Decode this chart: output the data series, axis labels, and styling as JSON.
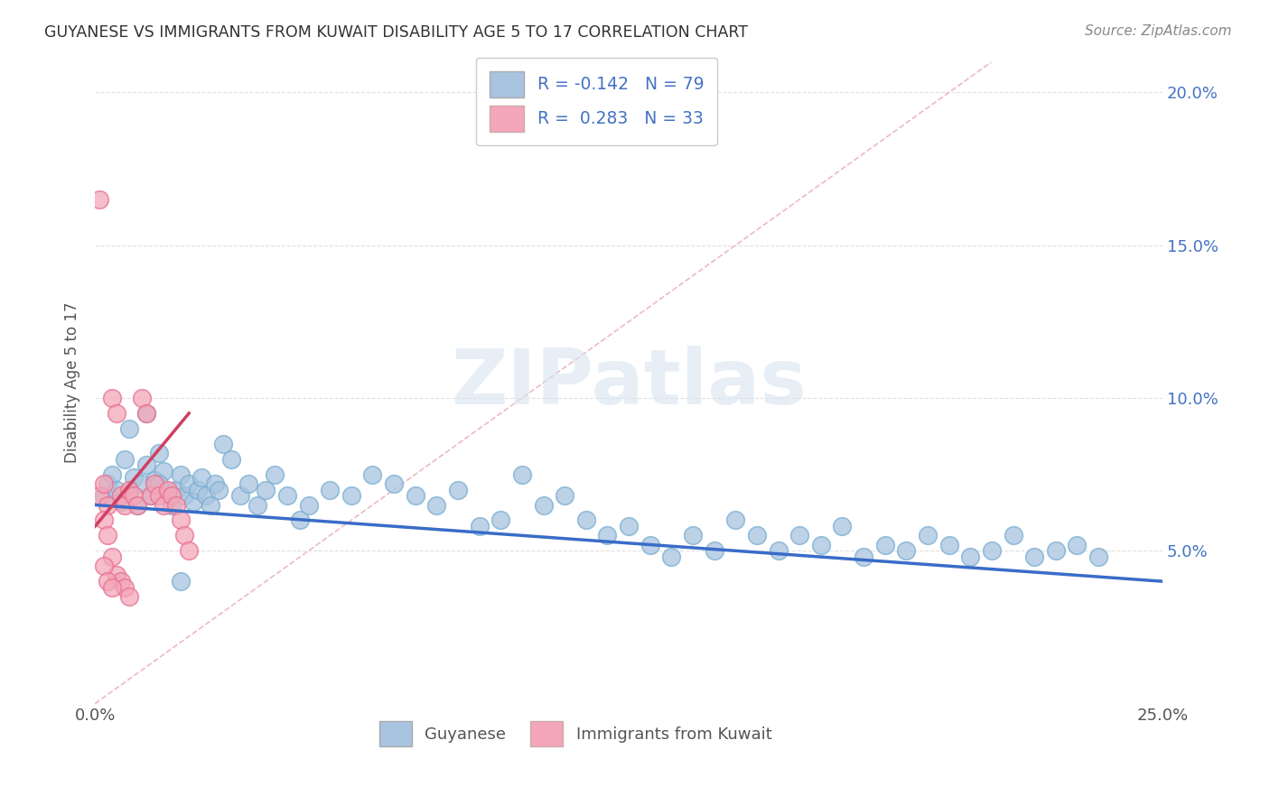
{
  "title": "GUYANESE VS IMMIGRANTS FROM KUWAIT DISABILITY AGE 5 TO 17 CORRELATION CHART",
  "source": "Source: ZipAtlas.com",
  "ylabel": "Disability Age 5 to 17",
  "xlim": [
    0.0,
    0.25
  ],
  "ylim": [
    0.0,
    0.21
  ],
  "x_tick_vals": [
    0.0,
    0.05,
    0.1,
    0.15,
    0.2,
    0.25
  ],
  "x_tick_labels": [
    "0.0%",
    "",
    "",
    "",
    "",
    "25.0%"
  ],
  "y_tick_vals": [
    0.05,
    0.1,
    0.15,
    0.2
  ],
  "y_tick_labels_right": [
    "5.0%",
    "10.0%",
    "15.0%",
    "20.0%"
  ],
  "legend1_label": "R = -0.142   N = 79",
  "legend2_label": "R =  0.283   N = 33",
  "legend_label1_bottom": "Guyanese",
  "legend_label2_bottom": "Immigrants from Kuwait",
  "blue_color": "#a8c4e0",
  "blue_edge_color": "#7aaed0",
  "pink_color": "#f4a7b9",
  "pink_edge_color": "#e87090",
  "line_blue": "#3a6cc8",
  "line_pink": "#d04060",
  "diag_color": "#e8a8b8",
  "watermark_color": "#d8e4f0",
  "watermark": "ZIPatlas",
  "background_color": "#ffffff",
  "grid_color": "#e0e0e0",
  "blue_scatter_x": [
    0.002,
    0.003,
    0.004,
    0.005,
    0.006,
    0.007,
    0.008,
    0.009,
    0.01,
    0.011,
    0.012,
    0.013,
    0.014,
    0.015,
    0.016,
    0.017,
    0.018,
    0.019,
    0.02,
    0.021,
    0.022,
    0.023,
    0.024,
    0.025,
    0.026,
    0.027,
    0.028,
    0.029,
    0.03,
    0.032,
    0.034,
    0.036,
    0.038,
    0.04,
    0.042,
    0.045,
    0.048,
    0.05,
    0.055,
    0.06,
    0.065,
    0.07,
    0.075,
    0.08,
    0.085,
    0.09,
    0.095,
    0.1,
    0.105,
    0.11,
    0.115,
    0.12,
    0.125,
    0.13,
    0.135,
    0.14,
    0.145,
    0.15,
    0.155,
    0.16,
    0.165,
    0.17,
    0.175,
    0.18,
    0.185,
    0.19,
    0.195,
    0.2,
    0.205,
    0.21,
    0.215,
    0.22,
    0.225,
    0.23,
    0.235,
    0.008,
    0.012,
    0.015,
    0.02
  ],
  "blue_scatter_y": [
    0.068,
    0.072,
    0.075,
    0.07,
    0.066,
    0.08,
    0.069,
    0.074,
    0.065,
    0.072,
    0.078,
    0.068,
    0.073,
    0.082,
    0.076,
    0.069,
    0.065,
    0.07,
    0.075,
    0.068,
    0.072,
    0.066,
    0.07,
    0.074,
    0.068,
    0.065,
    0.072,
    0.07,
    0.085,
    0.08,
    0.068,
    0.072,
    0.065,
    0.07,
    0.075,
    0.068,
    0.06,
    0.065,
    0.07,
    0.068,
    0.075,
    0.072,
    0.068,
    0.065,
    0.07,
    0.058,
    0.06,
    0.075,
    0.065,
    0.068,
    0.06,
    0.055,
    0.058,
    0.052,
    0.048,
    0.055,
    0.05,
    0.06,
    0.055,
    0.05,
    0.055,
    0.052,
    0.058,
    0.048,
    0.052,
    0.05,
    0.055,
    0.052,
    0.048,
    0.05,
    0.055,
    0.048,
    0.05,
    0.052,
    0.048,
    0.09,
    0.095,
    0.072,
    0.04
  ],
  "pink_scatter_x": [
    0.001,
    0.002,
    0.003,
    0.004,
    0.005,
    0.006,
    0.007,
    0.008,
    0.009,
    0.01,
    0.011,
    0.012,
    0.013,
    0.014,
    0.015,
    0.016,
    0.017,
    0.018,
    0.019,
    0.02,
    0.021,
    0.022,
    0.002,
    0.003,
    0.004,
    0.005,
    0.006,
    0.007,
    0.008,
    0.002,
    0.003,
    0.004,
    0.001
  ],
  "pink_scatter_y": [
    0.068,
    0.072,
    0.065,
    0.1,
    0.095,
    0.068,
    0.065,
    0.07,
    0.068,
    0.065,
    0.1,
    0.095,
    0.068,
    0.072,
    0.068,
    0.065,
    0.07,
    0.068,
    0.065,
    0.06,
    0.055,
    0.05,
    0.06,
    0.055,
    0.048,
    0.042,
    0.04,
    0.038,
    0.035,
    0.045,
    0.04,
    0.038,
    0.165
  ],
  "blue_line_x": [
    0.0,
    0.25
  ],
  "blue_line_y": [
    0.065,
    0.04
  ],
  "pink_line_x": [
    0.0,
    0.022
  ],
  "pink_line_y": [
    0.058,
    0.095
  ]
}
